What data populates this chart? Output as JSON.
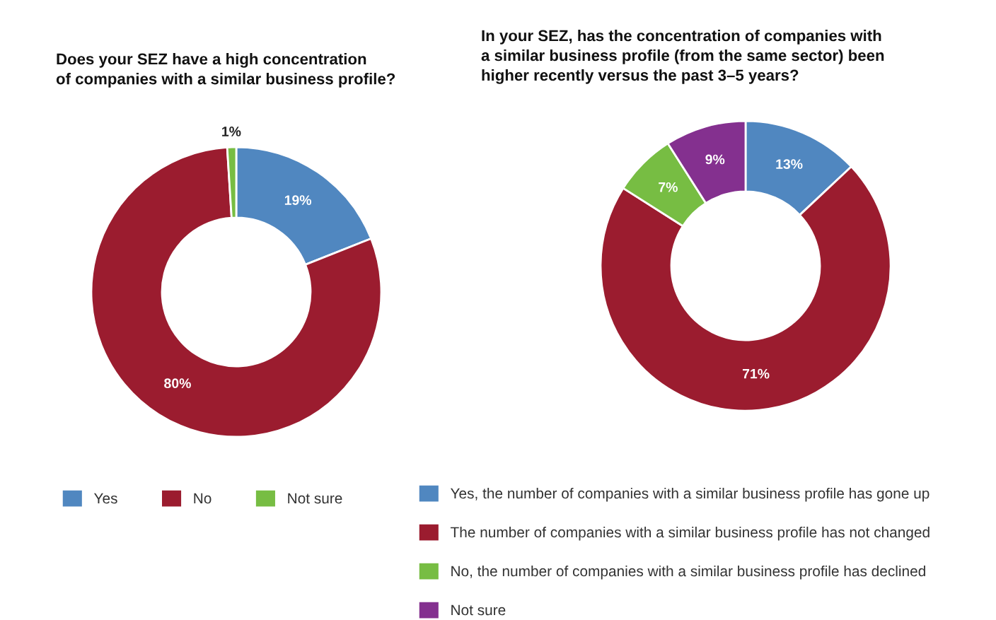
{
  "chart_data": [
    {
      "type": "donut",
      "title": "Does your SEZ have a high concentration\nof companies with a similar business profile?",
      "categories": [
        "Yes",
        "No",
        "Not sure"
      ],
      "values": [
        19,
        80,
        1
      ],
      "colors": [
        "#5087c0",
        "#9b1c2f",
        "#77bd43"
      ],
      "value_labels": [
        "19%",
        "80%",
        "1%"
      ],
      "legend": "bottom"
    },
    {
      "type": "donut",
      "title": "In your SEZ, has the concentration of companies with\na similar business profile (from the same sector) been\nhigher recently versus the past 3–5 years?",
      "categories": [
        "Yes, the number of companies with a similar business profile has gone up",
        "The number of companies with a similar business profile has not changed",
        "No, the number of companies with a similar business profile has declined",
        "Not sure"
      ],
      "values": [
        13,
        71,
        7,
        9
      ],
      "colors": [
        "#5087c0",
        "#9b1c2f",
        "#77bd43",
        "#84308f"
      ],
      "value_labels": [
        "13%",
        "71%",
        "7%",
        "9%"
      ],
      "legend": "bottom"
    }
  ]
}
